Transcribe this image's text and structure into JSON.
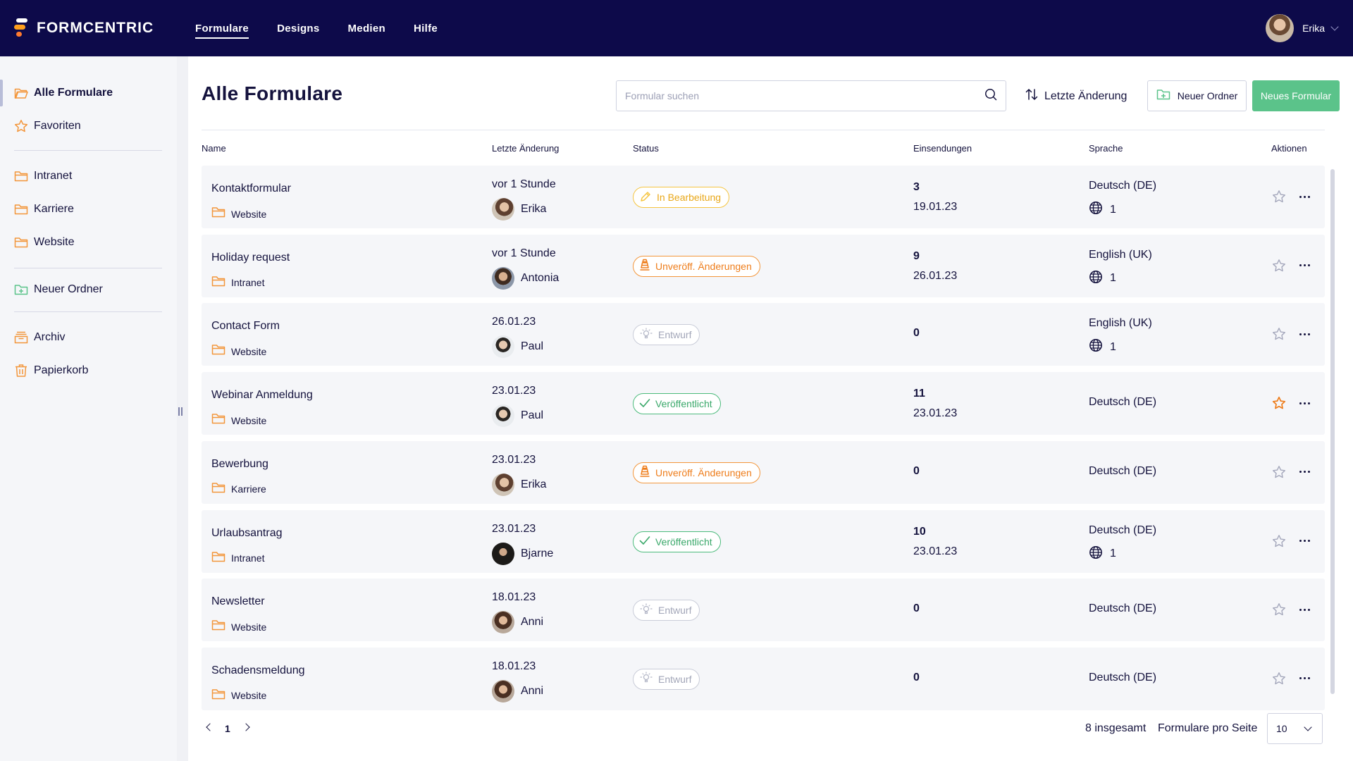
{
  "app": {
    "logo_text": "FORMCENTRIC",
    "nav": [
      "Formulare",
      "Designs",
      "Medien",
      "Hilfe"
    ],
    "user_name": "Erika"
  },
  "sidebar": {
    "items": [
      {
        "label": "Alle Formulare",
        "icon": "folder-open-icon"
      },
      {
        "label": "Favoriten",
        "icon": "star-icon"
      },
      {
        "label": "Intranet",
        "icon": "folder-icon"
      },
      {
        "label": "Karriere",
        "icon": "folder-icon"
      },
      {
        "label": "Website",
        "icon": "folder-icon"
      },
      {
        "label": "Neuer Ordner",
        "icon": "folder-plus-icon"
      },
      {
        "label": "Archiv",
        "icon": "archive-icon"
      },
      {
        "label": "Papierkorb",
        "icon": "trash-icon"
      }
    ]
  },
  "main": {
    "title": "Alle Formulare",
    "search_placeholder": "Formular suchen",
    "sort_label": "Letzte Änderung",
    "new_folder_label": "Neuer Ordner",
    "new_form_label": "Neues Formular",
    "columns": [
      "Name",
      "Letzte Änderung",
      "Status",
      "Einsendungen",
      "Sprache",
      "Aktionen"
    ]
  },
  "rows": [
    {
      "name": "Kontaktformular",
      "folder": "Website",
      "date": "vor 1 Stunde",
      "editor": "Erika",
      "status": "In Bearbeitung",
      "status_type": "edit",
      "count": "3",
      "last_submission": "19.01.23",
      "language": "Deutsch (DE)",
      "translations": "1",
      "favorite": false
    },
    {
      "name": "Holiday request",
      "folder": "Intranet",
      "date": "vor 1 Stunde",
      "editor": "Antonia",
      "status": "Unveröff. Änderungen",
      "status_type": "unpub",
      "count": "9",
      "last_submission": "26.01.23",
      "language": "English (UK)",
      "translations": "1",
      "favorite": false
    },
    {
      "name": "Contact Form",
      "folder": "Website",
      "date": "26.01.23",
      "editor": "Paul",
      "status": "Entwurf",
      "status_type": "draft",
      "count": "0",
      "last_submission": "",
      "language": "English (UK)",
      "translations": "1",
      "favorite": false
    },
    {
      "name": "Webinar Anmeldung",
      "folder": "Website",
      "date": "23.01.23",
      "editor": "Paul",
      "status": "Veröffentlicht",
      "status_type": "pub",
      "count": "11",
      "last_submission": "23.01.23",
      "language": "Deutsch (DE)",
      "translations": "",
      "favorite": true
    },
    {
      "name": "Bewerbung",
      "folder": "Karriere",
      "date": "23.01.23",
      "editor": "Erika",
      "status": "Unveröff. Änderungen",
      "status_type": "unpub",
      "count": "0",
      "last_submission": "",
      "language": "Deutsch (DE)",
      "translations": "",
      "favorite": false
    },
    {
      "name": "Urlaubsantrag",
      "folder": "Intranet",
      "date": "23.01.23",
      "editor": "Bjarne",
      "status": "Veröffentlicht",
      "status_type": "pub",
      "count": "10",
      "last_submission": "23.01.23",
      "language": "Deutsch (DE)",
      "translations": "1",
      "favorite": false
    },
    {
      "name": "Newsletter",
      "folder": "Website",
      "date": "18.01.23",
      "editor": "Anni",
      "status": "Entwurf",
      "status_type": "draft",
      "count": "0",
      "last_submission": "",
      "language": "Deutsch (DE)",
      "translations": "",
      "favorite": false
    },
    {
      "name": "Schadensmeldung",
      "folder": "Website",
      "date": "18.01.23",
      "editor": "Anni",
      "status": "Entwurf",
      "status_type": "draft",
      "count": "0",
      "last_submission": "",
      "language": "Deutsch (DE)",
      "translations": "",
      "favorite": false
    }
  ],
  "pagination": {
    "current_page": "1",
    "total": "8 insgesamt",
    "per_page_label": "Formulare pro Seite",
    "per_page": "10"
  },
  "colors": {
    "topbar": "#0d0a4a",
    "accent_green": "#5bc38a",
    "folder_orange": "#f3963b",
    "favorite_star": "#ee7d1b"
  }
}
